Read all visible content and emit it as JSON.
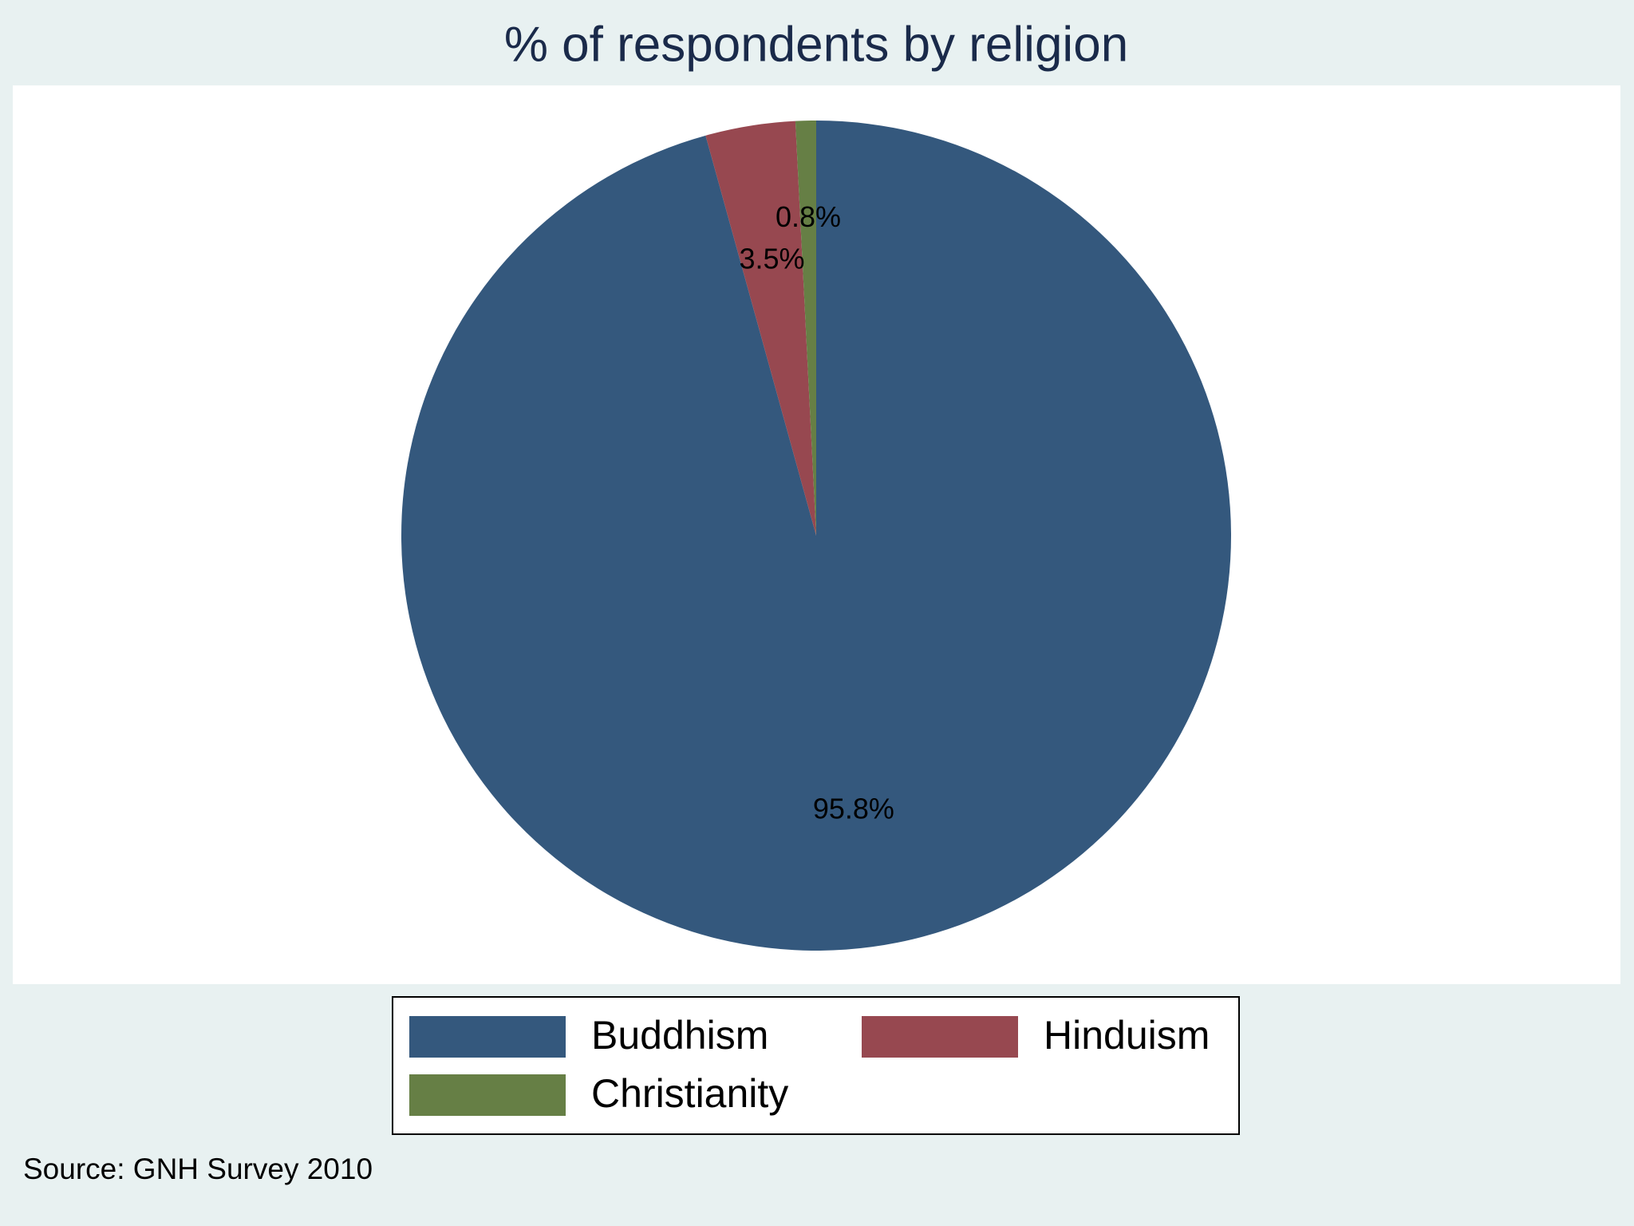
{
  "chart_data": {
    "type": "pie",
    "title": "% of respondents by religion",
    "categories": [
      "Buddhism",
      "Hinduism",
      "Christianity"
    ],
    "values": [
      95.8,
      3.5,
      0.8
    ],
    "value_labels": [
      "95.8%",
      "3.5%",
      "0.8%"
    ],
    "colors": [
      "#34587d",
      "#974850",
      "#667f45"
    ],
    "legend": "bottom",
    "source": "Source: GNH Survey 2010"
  }
}
